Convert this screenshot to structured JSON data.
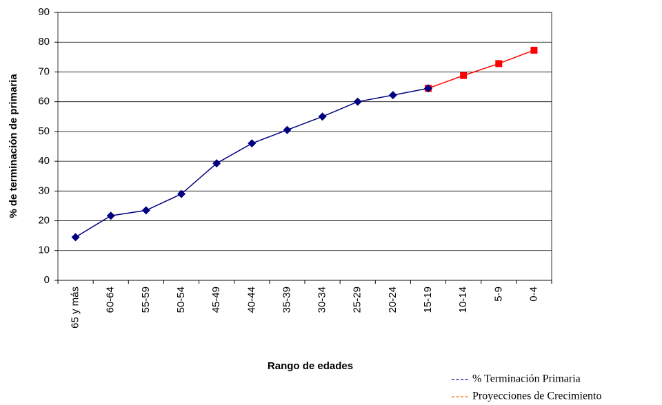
{
  "chart_data": {
    "type": "line",
    "xlabel": "Rango de edades",
    "ylabel": "% de terminación de primaria",
    "categories": [
      "65 y más",
      "60-64",
      "55-59",
      "50-54",
      "45-49",
      "40-44",
      "35-39",
      "30-34",
      "25-29",
      "20-24",
      "15-19",
      "10-14",
      "5-9",
      "0-4"
    ],
    "series": [
      {
        "name": "% Terminación Primaria",
        "color": "#000080",
        "legend_color": "#000080",
        "marker": "diamond",
        "values": [
          14.5,
          21.7,
          23.5,
          29,
          39.3,
          46,
          50.5,
          55,
          60,
          62.2,
          64.5,
          null,
          null,
          null
        ]
      },
      {
        "name": "Proyecciones de Crecimiento",
        "color": "#ff0000",
        "legend_color": "#ff6600",
        "marker": "square",
        "values": [
          null,
          null,
          null,
          null,
          null,
          null,
          null,
          null,
          null,
          null,
          64.5,
          68.8,
          72.8,
          77.3
        ]
      }
    ],
    "ylim": [
      0,
      90
    ],
    "yticks": [
      0,
      10,
      20,
      30,
      40,
      50,
      60,
      70,
      80,
      90
    ],
    "grid": true
  }
}
